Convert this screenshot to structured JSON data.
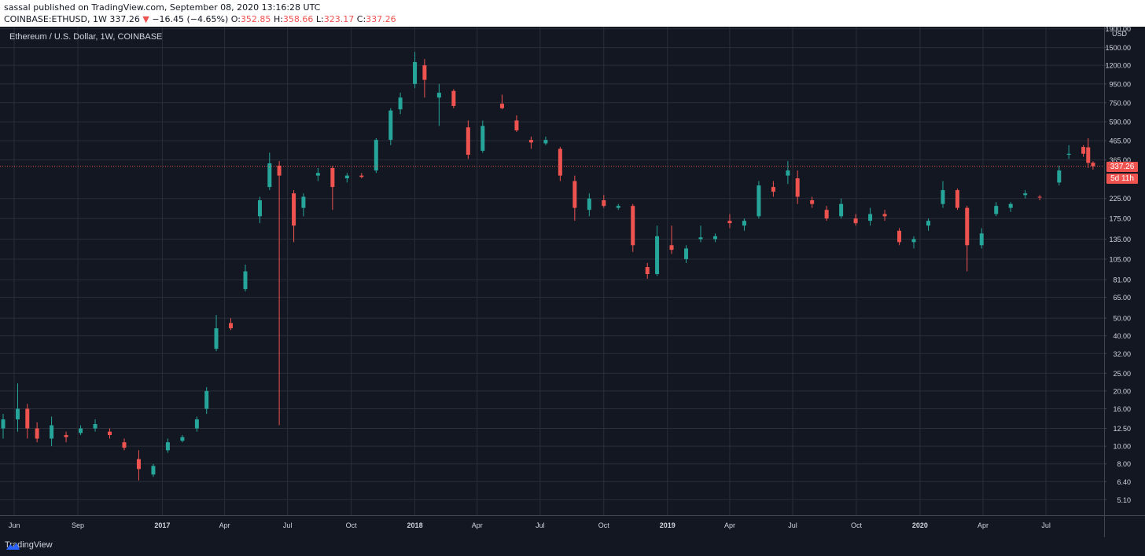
{
  "header": {
    "published": "sassal published on TradingView.com, September 08, 2020 13:16:28 UTC",
    "symbol": "COINBASE:ETHUSD, 1W",
    "last": "337.26",
    "change_arrow": "▼",
    "change": "−16.45 (−4.65%)",
    "o_label": "O:",
    "o": "352.85",
    "h_label": "H:",
    "h": "358.66",
    "l_label": "L:",
    "l": "323.17",
    "c_label": "C:",
    "c": "337.26"
  },
  "chart_title": "Ethereum / U.S. Dollar, 1W, COINBASE",
  "footer": {
    "brand": "TradingView"
  },
  "price_tag": {
    "price": "337.26",
    "countdown": "5d 11h"
  },
  "colors": {
    "up": "#26a69a",
    "down": "#ef5350",
    "bg": "#131722",
    "grid": "#2a2e39"
  },
  "chart_data": {
    "type": "candlestick",
    "ylabel": "USD",
    "y_scale": "log",
    "ylim": [
      4.2,
      1950
    ],
    "y_ticks": [
      "1900.00",
      "1500.00",
      "1200.00",
      "950.00",
      "750.00",
      "590.00",
      "465.00",
      "365.00",
      "225.00",
      "175.00",
      "135.00",
      "105.00",
      "81.00",
      "65.00",
      "50.00",
      "40.00",
      "32.00",
      "25.00",
      "20.00",
      "16.00",
      "12.50",
      "10.00",
      "8.00",
      "6.40",
      "5.10"
    ],
    "x_ticks": [
      {
        "label": "Jun",
        "date": "2016-06-01"
      },
      {
        "label": "Sep",
        "date": "2016-09-01"
      },
      {
        "label": "2017",
        "date": "2017-01-01"
      },
      {
        "label": "Apr",
        "date": "2017-04-01"
      },
      {
        "label": "Jul",
        "date": "2017-07-01"
      },
      {
        "label": "Oct",
        "date": "2017-10-01"
      },
      {
        "label": "2018",
        "date": "2018-01-01"
      },
      {
        "label": "Apr",
        "date": "2018-04-01"
      },
      {
        "label": "Jul",
        "date": "2018-07-01"
      },
      {
        "label": "Oct",
        "date": "2018-10-01"
      },
      {
        "label": "2019",
        "date": "2019-01-01"
      },
      {
        "label": "Apr",
        "date": "2019-04-01"
      },
      {
        "label": "Jul",
        "date": "2019-07-01"
      },
      {
        "label": "Oct",
        "date": "2019-10-01"
      },
      {
        "label": "2020",
        "date": "2020-01-01"
      },
      {
        "label": "Apr",
        "date": "2020-04-01"
      },
      {
        "label": "Jul",
        "date": "2020-07-01"
      }
    ],
    "x_range": [
      "2016-05-16",
      "2020-09-23"
    ],
    "last_price": 337.26,
    "candles": [
      {
        "t": "2016-05-16",
        "o": 12.5,
        "h": 15.0,
        "l": 11.0,
        "c": 14.0
      },
      {
        "t": "2016-06-06",
        "o": 14.0,
        "h": 22.0,
        "l": 12.0,
        "c": 16.0
      },
      {
        "t": "2016-06-20",
        "o": 16.0,
        "h": 17.0,
        "l": 11.0,
        "c": 12.5
      },
      {
        "t": "2016-07-04",
        "o": 12.5,
        "h": 13.5,
        "l": 10.5,
        "c": 11.0
      },
      {
        "t": "2016-07-25",
        "o": 11.0,
        "h": 14.5,
        "l": 10.0,
        "c": 13.0
      },
      {
        "t": "2016-08-15",
        "o": 11.5,
        "h": 12.0,
        "l": 10.5,
        "c": 11.2
      },
      {
        "t": "2016-09-05",
        "o": 11.8,
        "h": 13.0,
        "l": 11.5,
        "c": 12.5
      },
      {
        "t": "2016-09-26",
        "o": 12.5,
        "h": 14.0,
        "l": 12.0,
        "c": 13.2
      },
      {
        "t": "2016-10-17",
        "o": 12.0,
        "h": 12.5,
        "l": 11.0,
        "c": 11.5
      },
      {
        "t": "2016-11-07",
        "o": 10.5,
        "h": 11.0,
        "l": 9.5,
        "c": 9.8
      },
      {
        "t": "2016-11-28",
        "o": 8.5,
        "h": 9.5,
        "l": 6.5,
        "c": 7.5
      },
      {
        "t": "2016-12-19",
        "o": 7.0,
        "h": 8.0,
        "l": 6.8,
        "c": 7.8
      },
      {
        "t": "2017-01-09",
        "o": 9.5,
        "h": 11.0,
        "l": 9.2,
        "c": 10.5
      },
      {
        "t": "2017-01-30",
        "o": 10.7,
        "h": 11.5,
        "l": 10.5,
        "c": 11.2
      },
      {
        "t": "2017-02-20",
        "o": 12.5,
        "h": 14.5,
        "l": 12.0,
        "c": 14.0
      },
      {
        "t": "2017-03-06",
        "o": 16.0,
        "h": 21.0,
        "l": 15.0,
        "c": 20.0
      },
      {
        "t": "2017-03-20",
        "o": 34.0,
        "h": 52.0,
        "l": 33.0,
        "c": 44.0
      },
      {
        "t": "2017-04-10",
        "o": 47.0,
        "h": 50.0,
        "l": 43.0,
        "c": 44.0
      },
      {
        "t": "2017-05-01",
        "o": 72.0,
        "h": 98.0,
        "l": 70.0,
        "c": 90.0
      },
      {
        "t": "2017-05-22",
        "o": 180.0,
        "h": 230.0,
        "l": 165.0,
        "c": 220.0
      },
      {
        "t": "2017-06-05",
        "o": 260.0,
        "h": 400.0,
        "l": 250.0,
        "c": 350.0
      },
      {
        "t": "2017-06-19",
        "o": 340.0,
        "h": 360.0,
        "l": 13.0,
        "c": 300.0
      },
      {
        "t": "2017-07-10",
        "o": 240.0,
        "h": 250.0,
        "l": 130.0,
        "c": 160.0
      },
      {
        "t": "2017-07-24",
        "o": 200.0,
        "h": 240.0,
        "l": 180.0,
        "c": 230.0
      },
      {
        "t": "2017-08-14",
        "o": 300.0,
        "h": 330.0,
        "l": 280.0,
        "c": 310.0
      },
      {
        "t": "2017-09-04",
        "o": 330.0,
        "h": 340.0,
        "l": 195.0,
        "c": 260.0
      },
      {
        "t": "2017-09-25",
        "o": 290.0,
        "h": 310.0,
        "l": 275.0,
        "c": 300.0
      },
      {
        "t": "2017-10-16",
        "o": 300.0,
        "h": 310.0,
        "l": 290.0,
        "c": 295.0
      },
      {
        "t": "2017-11-06",
        "o": 320.0,
        "h": 480.0,
        "l": 310.0,
        "c": 470.0
      },
      {
        "t": "2017-11-27",
        "o": 470.0,
        "h": 700.0,
        "l": 440.0,
        "c": 680.0
      },
      {
        "t": "2017-12-11",
        "o": 690.0,
        "h": 850.0,
        "l": 650.0,
        "c": 800.0
      },
      {
        "t": "2018-01-01",
        "o": 950.0,
        "h": 1420.0,
        "l": 900.0,
        "c": 1250.0
      },
      {
        "t": "2018-01-15",
        "o": 1200.0,
        "h": 1300.0,
        "l": 800.0,
        "c": 1000.0
      },
      {
        "t": "2018-02-05",
        "o": 800.0,
        "h": 950.0,
        "l": 560.0,
        "c": 850.0
      },
      {
        "t": "2018-02-26",
        "o": 870.0,
        "h": 890.0,
        "l": 700.0,
        "c": 720.0
      },
      {
        "t": "2018-03-19",
        "o": 550.0,
        "h": 600.0,
        "l": 370.0,
        "c": 390.0
      },
      {
        "t": "2018-04-09",
        "o": 410.0,
        "h": 600.0,
        "l": 400.0,
        "c": 560.0
      },
      {
        "t": "2018-05-07",
        "o": 740.0,
        "h": 830.0,
        "l": 690.0,
        "c": 700.0
      },
      {
        "t": "2018-05-28",
        "o": 600.0,
        "h": 640.0,
        "l": 520.0,
        "c": 530.0
      },
      {
        "t": "2018-06-18",
        "o": 470.0,
        "h": 490.0,
        "l": 420.0,
        "c": 455.0
      },
      {
        "t": "2018-07-09",
        "o": 450.0,
        "h": 490.0,
        "l": 440.0,
        "c": 470.0
      },
      {
        "t": "2018-07-30",
        "o": 420.0,
        "h": 430.0,
        "l": 280.0,
        "c": 300.0
      },
      {
        "t": "2018-08-20",
        "o": 280.0,
        "h": 300.0,
        "l": 170.0,
        "c": 200.0
      },
      {
        "t": "2018-09-10",
        "o": 195.0,
        "h": 240.0,
        "l": 180.0,
        "c": 225.0
      },
      {
        "t": "2018-10-01",
        "o": 220.0,
        "h": 235.0,
        "l": 200.0,
        "c": 205.0
      },
      {
        "t": "2018-10-22",
        "o": 200.0,
        "h": 210.0,
        "l": 195.0,
        "c": 205.0
      },
      {
        "t": "2018-11-12",
        "o": 205.0,
        "h": 210.0,
        "l": 115.0,
        "c": 125.0
      },
      {
        "t": "2018-12-03",
        "o": 95.0,
        "h": 100.0,
        "l": 82.0,
        "c": 87.0
      },
      {
        "t": "2018-12-17",
        "o": 87.0,
        "h": 160.0,
        "l": 85.0,
        "c": 140.0
      },
      {
        "t": "2019-01-07",
        "o": 125.0,
        "h": 160.0,
        "l": 112.0,
        "c": 118.0
      },
      {
        "t": "2019-01-28",
        "o": 105.0,
        "h": 125.0,
        "l": 100.0,
        "c": 120.0
      },
      {
        "t": "2019-02-18",
        "o": 135.0,
        "h": 160.0,
        "l": 130.0,
        "c": 138.0
      },
      {
        "t": "2019-03-11",
        "o": 135.0,
        "h": 145.0,
        "l": 130.0,
        "c": 140.0
      },
      {
        "t": "2019-04-01",
        "o": 170.0,
        "h": 185.0,
        "l": 155.0,
        "c": 165.0
      },
      {
        "t": "2019-04-22",
        "o": 160.0,
        "h": 175.0,
        "l": 150.0,
        "c": 170.0
      },
      {
        "t": "2019-05-13",
        "o": 180.0,
        "h": 280.0,
        "l": 175.0,
        "c": 265.0
      },
      {
        "t": "2019-06-03",
        "o": 260.0,
        "h": 280.0,
        "l": 230.0,
        "c": 245.0
      },
      {
        "t": "2019-06-24",
        "o": 300.0,
        "h": 360.0,
        "l": 270.0,
        "c": 320.0
      },
      {
        "t": "2019-07-08",
        "o": 290.0,
        "h": 320.0,
        "l": 210.0,
        "c": 230.0
      },
      {
        "t": "2019-07-29",
        "o": 220.0,
        "h": 230.0,
        "l": 200.0,
        "c": 210.0
      },
      {
        "t": "2019-08-19",
        "o": 195.0,
        "h": 205.0,
        "l": 170.0,
        "c": 175.0
      },
      {
        "t": "2019-09-09",
        "o": 180.0,
        "h": 225.0,
        "l": 175.0,
        "c": 210.0
      },
      {
        "t": "2019-09-30",
        "o": 175.0,
        "h": 185.0,
        "l": 160.0,
        "c": 165.0
      },
      {
        "t": "2019-10-21",
        "o": 170.0,
        "h": 200.0,
        "l": 160.0,
        "c": 185.0
      },
      {
        "t": "2019-11-11",
        "o": 185.0,
        "h": 195.0,
        "l": 170.0,
        "c": 180.0
      },
      {
        "t": "2019-12-02",
        "o": 150.0,
        "h": 155.0,
        "l": 125.0,
        "c": 130.0
      },
      {
        "t": "2019-12-23",
        "o": 130.0,
        "h": 140.0,
        "l": 120.0,
        "c": 135.0
      },
      {
        "t": "2020-01-13",
        "o": 160.0,
        "h": 175.0,
        "l": 150.0,
        "c": 170.0
      },
      {
        "t": "2020-02-03",
        "o": 210.0,
        "h": 280.0,
        "l": 200.0,
        "c": 250.0
      },
      {
        "t": "2020-02-24",
        "o": 250.0,
        "h": 255.0,
        "l": 195.0,
        "c": 200.0
      },
      {
        "t": "2020-03-09",
        "o": 200.0,
        "h": 205.0,
        "l": 90.0,
        "c": 125.0
      },
      {
        "t": "2020-03-30",
        "o": 125.0,
        "h": 155.0,
        "l": 120.0,
        "c": 145.0
      },
      {
        "t": "2020-04-20",
        "o": 185.0,
        "h": 215.0,
        "l": 180.0,
        "c": 205.0
      },
      {
        "t": "2020-05-11",
        "o": 200.0,
        "h": 215.0,
        "l": 190.0,
        "c": 210.0
      },
      {
        "t": "2020-06-01",
        "o": 235.0,
        "h": 250.0,
        "l": 225.0,
        "c": 240.0
      },
      {
        "t": "2020-06-22",
        "o": 230.0,
        "h": 235.0,
        "l": 220.0,
        "c": 228.0
      },
      {
        "t": "2020-07-20",
        "o": 275.0,
        "h": 340.0,
        "l": 265.0,
        "c": 320.0
      },
      {
        "t": "2020-08-03",
        "o": 390.0,
        "h": 440.0,
        "l": 370.0,
        "c": 395.0
      },
      {
        "t": "2020-08-24",
        "o": 430.0,
        "h": 440.0,
        "l": 380.0,
        "c": 395.0
      },
      {
        "t": "2020-08-31",
        "o": 428.0,
        "h": 480.0,
        "l": 330.0,
        "c": 352.0
      },
      {
        "t": "2020-09-07",
        "o": 352.85,
        "h": 358.66,
        "l": 323.17,
        "c": 337.26
      }
    ]
  }
}
